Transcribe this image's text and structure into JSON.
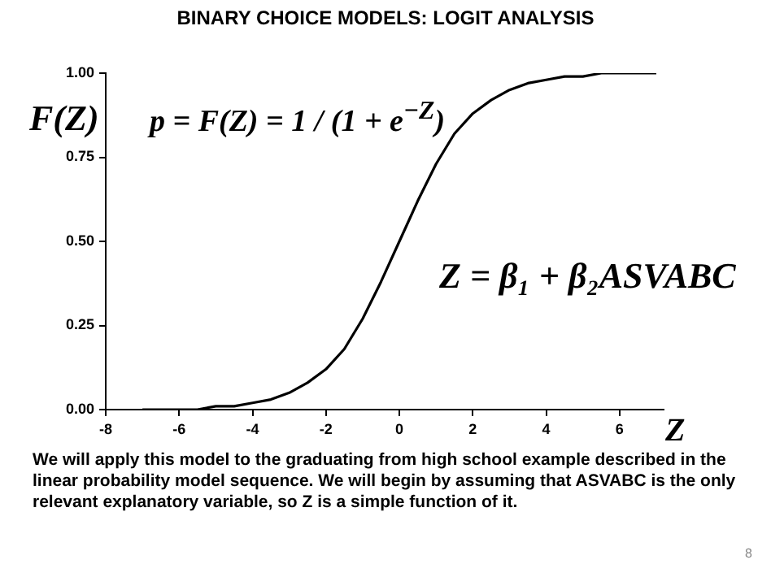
{
  "chart_data": {
    "type": "line",
    "title": "BINARY CHOICE MODELS: LOGIT ANALYSIS",
    "xlabel": "Z",
    "ylabel": "F(Z)",
    "x": [
      -7,
      -6.5,
      -6,
      -5.5,
      -5,
      -4.5,
      -4,
      -3.5,
      -3,
      -2.5,
      -2,
      -1.5,
      -1,
      -0.5,
      0,
      0.5,
      1,
      1.5,
      2,
      2.5,
      3,
      3.5,
      4,
      4.5,
      5,
      5.5,
      6,
      6.5,
      7
    ],
    "series": [
      {
        "color": "#000000",
        "values": [
          0.0,
          0.0,
          0.0,
          0.0,
          0.01,
          0.01,
          0.02,
          0.03,
          0.05,
          0.08,
          0.12,
          0.18,
          0.27,
          0.38,
          0.5,
          0.62,
          0.73,
          0.82,
          0.88,
          0.92,
          0.95,
          0.97,
          0.98,
          0.99,
          0.99,
          1.0,
          1.0,
          1.0,
          1.0
        ]
      }
    ],
    "xlim": [
      -8,
      7.2
    ],
    "xticks": [
      -8,
      -6,
      -4,
      -2,
      0,
      2,
      4,
      6
    ],
    "ylim": [
      0,
      1
    ],
    "yticks": [
      {
        "value": 0,
        "label": "0.00"
      },
      {
        "value": 0.25,
        "label": "0.25"
      },
      {
        "value": 0.5,
        "label": "0.50"
      },
      {
        "value": 0.75,
        "label": "0.75"
      },
      {
        "value": 1,
        "label": "1.00"
      }
    ],
    "grid": false,
    "legend": false,
    "marker": "none",
    "line_style": "solid",
    "annotations": [
      "p = F(Z) = 1 / (1 + e$^{−Z}$)",
      "Z = β₁ + β₂ASVABC",
      "We will apply this model to the graduating from high school example described in the linear probability model sequence.  We will begin by assuming that ASVABC is the only relevant explanatory variable, so Z is a simple function of it.",
      "8"
    ]
  }
}
